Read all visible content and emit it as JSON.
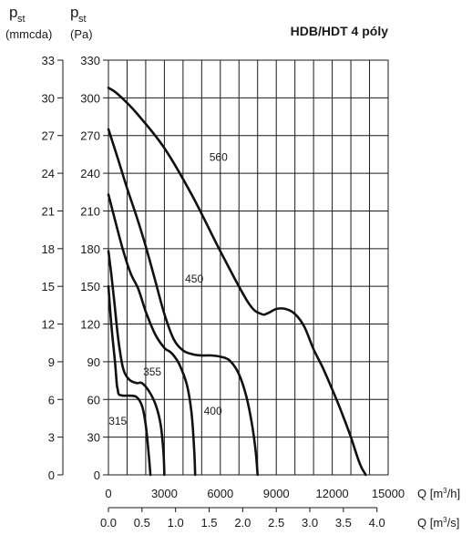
{
  "chart_data": {
    "type": "line",
    "title": "HDB/HDT 4 póly",
    "ylabel_left": {
      "symbol": "p",
      "subscript": "st",
      "unit": "(mmcda)"
    },
    "ylabel_right": {
      "symbol": "p",
      "subscript": "st",
      "unit": "(Pa)"
    },
    "xlabel_primary": {
      "prefix": "Q [m",
      "sup": "3",
      "suffix": "/h]"
    },
    "xlabel_secondary": {
      "prefix": "Q [m",
      "sup": "3",
      "suffix": "/s]"
    },
    "ylim": [
      0,
      330
    ],
    "xlim": [
      0,
      15000
    ],
    "y_ticks_pa": [
      "0",
      "30",
      "60",
      "90",
      "120",
      "150",
      "180",
      "210",
      "240",
      "270",
      "300",
      "330"
    ],
    "y_ticks_mmcda": [
      "0",
      "3",
      "6",
      "9",
      "12",
      "15",
      "18",
      "21",
      "24",
      "27",
      "30",
      "33"
    ],
    "x_ticks_m3h": [
      "0",
      "3000",
      "6000",
      "9000",
      "12000",
      "15000"
    ],
    "x_ticks_m3s": [
      "0.0",
      "0.5",
      "1.0",
      "1.5",
      "2.0",
      "2.5",
      "3.0",
      "3.5",
      "4.0"
    ],
    "grid": true,
    "series": [
      {
        "name": "315",
        "x": [
          0,
          150,
          350,
          450,
          500,
          560,
          800,
          1100,
          1500,
          1800,
          2000,
          2150,
          2250
        ],
        "y": [
          150,
          120,
          90,
          72,
          68,
          64,
          63,
          63,
          62,
          55,
          40,
          18,
          0
        ]
      },
      {
        "name": "355",
        "x": [
          0,
          150,
          300,
          450,
          600,
          800,
          1100,
          1500,
          1800,
          2200,
          2550,
          2800,
          2950,
          3000
        ],
        "y": [
          178,
          160,
          140,
          118,
          100,
          84,
          76,
          73,
          73,
          66,
          55,
          40,
          18,
          0
        ]
      },
      {
        "name": "400",
        "x": [
          0,
          400,
          800,
          1200,
          1600,
          2000,
          2500,
          3000,
          3300,
          3500,
          3800,
          4200,
          4450,
          4600,
          4650
        ],
        "y": [
          223,
          200,
          178,
          160,
          148,
          130,
          112,
          101,
          98,
          95,
          88,
          72,
          50,
          20,
          0
        ]
      },
      {
        "name": "450",
        "x": [
          0,
          500,
          1000,
          1500,
          2000,
          2500,
          3000,
          3500,
          4000,
          4500,
          5000,
          5500,
          6000,
          6500,
          7000,
          7400,
          7700,
          7900,
          8000
        ],
        "y": [
          275,
          252,
          228,
          206,
          182,
          155,
          128,
          108,
          99,
          96,
          95,
          95,
          94,
          91,
          80,
          62,
          40,
          18,
          0
        ]
      },
      {
        "name": "560",
        "x": [
          0,
          500,
          1500,
          3000,
          4500,
          6000,
          7500,
          8200,
          8600,
          9000,
          9500,
          10000,
          10500,
          11000,
          11500,
          12000,
          12500,
          13000,
          13400,
          13600,
          13800
        ],
        "y": [
          308,
          303,
          288,
          260,
          222,
          178,
          137,
          128,
          129,
          132,
          132,
          128,
          118,
          100,
          85,
          68,
          50,
          30,
          12,
          5,
          0
        ]
      }
    ]
  }
}
